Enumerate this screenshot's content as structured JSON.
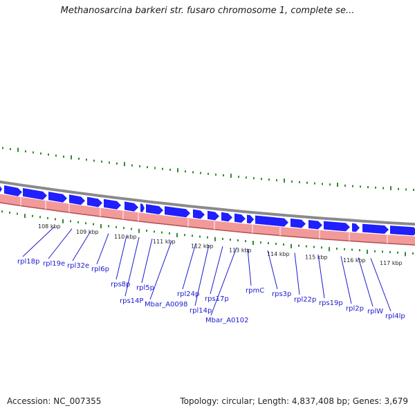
{
  "title": "Methanosarcina barkeri str. fusaro chromosome 1, complete se...",
  "footer": {
    "accession": "Accession: NC_007355",
    "topology": "Topology: circular; Length: 4,837,408 bp; Genes: 3,679"
  },
  "colors": {
    "backbone": "#8a8a8a",
    "forward_gene": "#1f1fff",
    "reverse_band": "#f29a9a",
    "reverse_band_edge": "#b05050",
    "tick": "#2e8b2e",
    "gene_label": "#1a1acd",
    "tick_label": "#222222"
  },
  "ticks": [
    "108 kbp",
    "109 kbp",
    "110 kbp",
    "111 kbp",
    "112 kbp",
    "113 kbp",
    "114 kbp",
    "115 kbp",
    "116 kbp",
    "117 kbp"
  ],
  "genes": [
    "rpl18p",
    "rpl19e",
    "rpl32e",
    "rpl6p",
    "rps8p",
    "rps14P",
    "rpl5p",
    "Mbar_A0098",
    "rpl24p",
    "rpl14p",
    "rps17p",
    "Mbar_A0102",
    "rpmC",
    "rps3p",
    "rpl22p",
    "rps19p",
    "rpl2p",
    "rplW",
    "rpl4lp"
  ]
}
